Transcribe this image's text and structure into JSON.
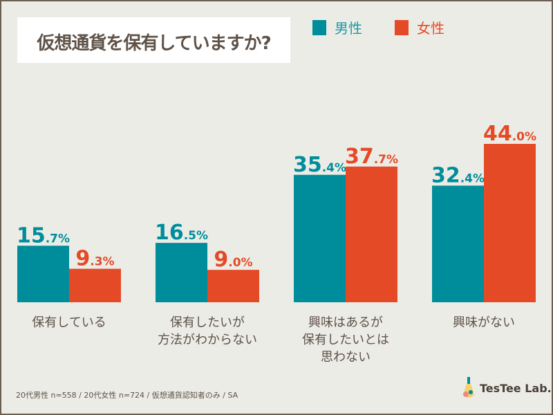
{
  "chart_data": {
    "type": "bar",
    "title": "仮想通貨を保有していますか?",
    "categories": [
      "保有している",
      "保有したいが\n方法がわからない",
      "興味はあるが\n保有したいとは\n思わない",
      "興味がない"
    ],
    "series": [
      {
        "name": "男性",
        "color": "#008d9b",
        "values": [
          15.7,
          16.5,
          35.4,
          32.4
        ]
      },
      {
        "name": "女性",
        "color": "#e54a27",
        "values": [
          9.3,
          9.0,
          37.7,
          44.0
        ]
      }
    ],
    "unit": "%",
    "ylim": [
      0,
      44
    ],
    "grid": false,
    "legend": "top"
  },
  "footnote": "20代男性 n=558 / 20代女性 n=724 / 仮想通貨認知者のみ / SA",
  "logo": "TesTee Lab."
}
